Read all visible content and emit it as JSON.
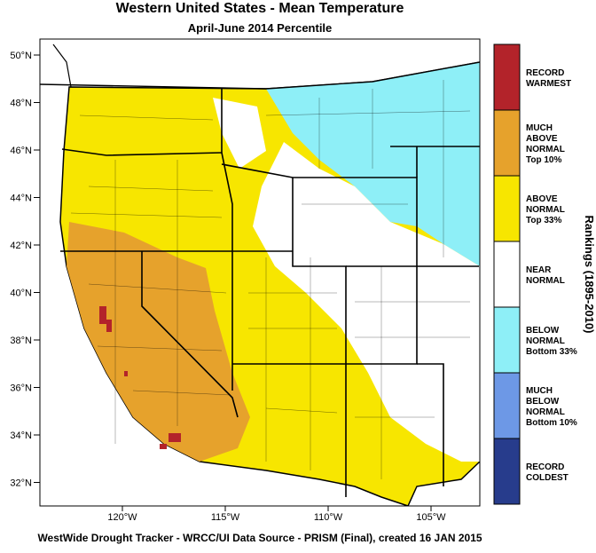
{
  "header": {
    "title": "Western United States - Mean Temperature",
    "subtitle": "April-June 2014 Percentile"
  },
  "map": {
    "lat_labels": [
      "50°N",
      "48°N",
      "46°N",
      "44°N",
      "42°N",
      "40°N",
      "38°N",
      "36°N",
      "34°N",
      "32°N"
    ],
    "lon_labels": [
      "120°W",
      "115°W",
      "110°W",
      "105°W"
    ]
  },
  "legend": {
    "title": "Rankings (1895-2010)",
    "items": [
      {
        "lines": [
          "RECORD",
          "WARMEST"
        ],
        "color": "#b3232a"
      },
      {
        "lines": [
          "MUCH",
          "ABOVE",
          "NORMAL",
          "Top 10%"
        ],
        "color": "#e6a22c"
      },
      {
        "lines": [
          "ABOVE",
          "NORMAL",
          "Top 33%"
        ],
        "color": "#f7e600"
      },
      {
        "lines": [
          "NEAR",
          "NORMAL"
        ],
        "color": "#ffffff"
      },
      {
        "lines": [
          "BELOW",
          "NORMAL",
          "Bottom 33%"
        ],
        "color": "#8eeff7"
      },
      {
        "lines": [
          "MUCH",
          "BELOW",
          "NORMAL",
          "Bottom 10%"
        ],
        "color": "#6d98e6"
      },
      {
        "lines": [
          "RECORD",
          "COLDEST"
        ],
        "color": "#273c8c"
      }
    ]
  },
  "footer": "WestWide Drought Tracker - WRCC/UI  Data Source - PRISM (Final), created 16 JAN 2015"
}
